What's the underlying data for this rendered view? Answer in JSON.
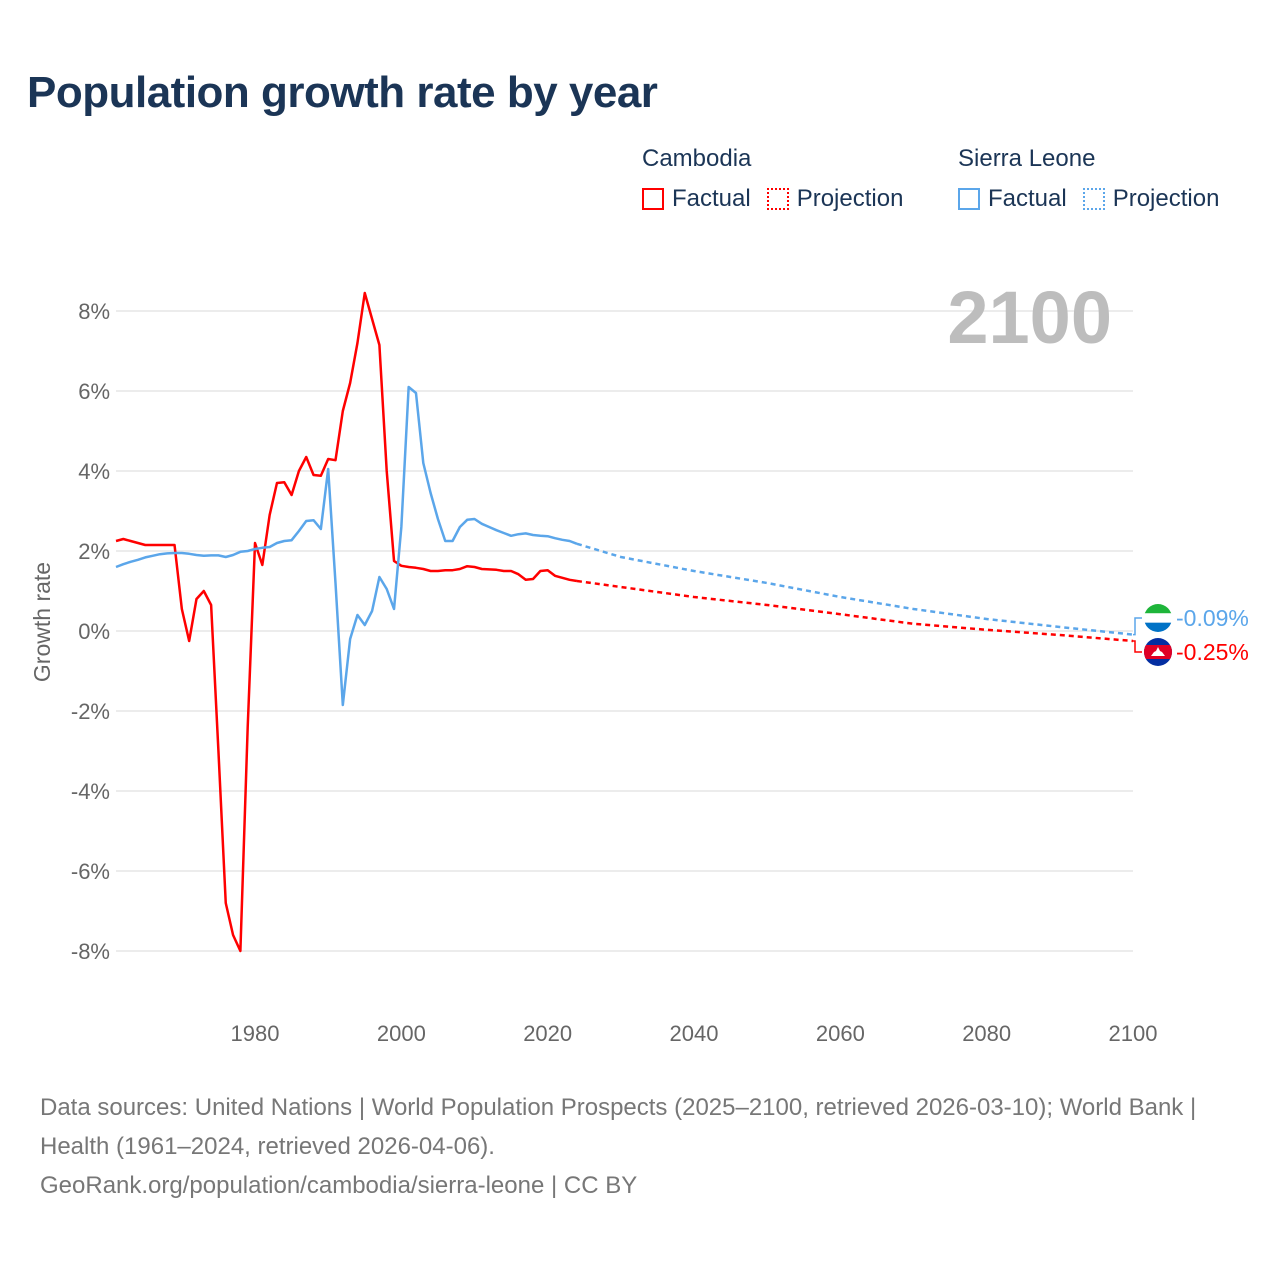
{
  "title": "Population growth rate by year",
  "legend": {
    "groups": [
      {
        "country": "Cambodia",
        "color": "#ff0000",
        "factual": "Factual",
        "projection": "Projection"
      },
      {
        "country": "Sierra Leone",
        "color": "#5ba6ea",
        "factual": "Factual",
        "projection": "Projection"
      }
    ]
  },
  "year_badge": "2100",
  "footer": {
    "sources": "Data sources: United Nations | World Population Prospects (2025–2100, retrieved 2026-03-10); World Bank | Health (1961–2024, retrieved 2026-04-06).",
    "link": "GeoRank.org/population/cambodia/sierra-leone | CC BY"
  },
  "chart_data": {
    "type": "line",
    "title": "Population growth rate by year",
    "xlabel": "",
    "ylabel": "Growth rate",
    "xlim": [
      1961,
      2100
    ],
    "ylim": [
      -10,
      9
    ],
    "xticks": [
      1980,
      2000,
      2020,
      2040,
      2060,
      2080,
      2100
    ],
    "xtick_labels": [
      "1980",
      "2000",
      "2020",
      "2040",
      "2060",
      "2080",
      "2100"
    ],
    "yticks": [
      -8,
      -6,
      -4,
      -2,
      0,
      2,
      4,
      6,
      8
    ],
    "ytick_labels": [
      "-8%",
      "-6%",
      "-4%",
      "-2%",
      "0%",
      "2%",
      "4%",
      "6%",
      "8%"
    ],
    "grid": true,
    "legend_position": "top-right",
    "series": [
      {
        "name": "Cambodia",
        "color": "#ff0000",
        "end_label": "-0.25%",
        "factual": {
          "x_start": 1961,
          "values": [
            2.25,
            2.3,
            2.25,
            2.2,
            2.15,
            2.15,
            2.15,
            2.15,
            2.15,
            0.55,
            -0.25,
            0.8,
            1.0,
            0.65,
            -3.0,
            -6.8,
            -7.6,
            -8.0,
            -2.4,
            2.2,
            1.65,
            2.9,
            3.7,
            3.72,
            3.4,
            4.0,
            4.35,
            3.9,
            3.88,
            4.3,
            4.27,
            5.5,
            6.2,
            7.2,
            8.45,
            7.8,
            7.15,
            4.0,
            1.75,
            1.63,
            1.6,
            1.58,
            1.55,
            1.5,
            1.5,
            1.52,
            1.52,
            1.55,
            1.62,
            1.6,
            1.55,
            1.54,
            1.53,
            1.5,
            1.5,
            1.42,
            1.28,
            1.3,
            1.5,
            1.52,
            1.38,
            1.33,
            1.28,
            1.25
          ]
        },
        "projection": {
          "x": [
            2024,
            2030,
            2040,
            2050,
            2060,
            2070,
            2080,
            2090,
            2100
          ],
          "values": [
            1.25,
            1.1,
            0.85,
            0.65,
            0.42,
            0.18,
            0.03,
            -0.1,
            -0.25
          ]
        }
      },
      {
        "name": "Sierra Leone",
        "color": "#5ba6ea",
        "end_label": "-0.09%",
        "factual": {
          "x_start": 1961,
          "values": [
            1.6,
            1.67,
            1.73,
            1.78,
            1.84,
            1.88,
            1.92,
            1.94,
            1.95,
            1.95,
            1.93,
            1.9,
            1.88,
            1.89,
            1.89,
            1.85,
            1.9,
            1.98,
            2.0,
            2.05,
            2.08,
            2.1,
            2.2,
            2.25,
            2.27,
            2.5,
            2.75,
            2.77,
            2.55,
            4.05,
            1.2,
            -1.85,
            -0.2,
            0.4,
            0.15,
            0.5,
            1.35,
            1.05,
            0.55,
            2.6,
            6.1,
            5.95,
            4.2,
            3.45,
            2.8,
            2.25,
            2.25,
            2.6,
            2.78,
            2.8,
            2.68,
            2.6,
            2.52,
            2.45,
            2.38,
            2.42,
            2.44,
            2.4,
            2.38,
            2.37,
            2.32,
            2.28,
            2.25,
            2.18
          ]
        },
        "projection": {
          "x": [
            2024,
            2030,
            2040,
            2050,
            2060,
            2070,
            2080,
            2090,
            2100
          ],
          "values": [
            2.18,
            1.85,
            1.5,
            1.2,
            0.85,
            0.55,
            0.3,
            0.1,
            -0.09
          ]
        }
      }
    ]
  }
}
